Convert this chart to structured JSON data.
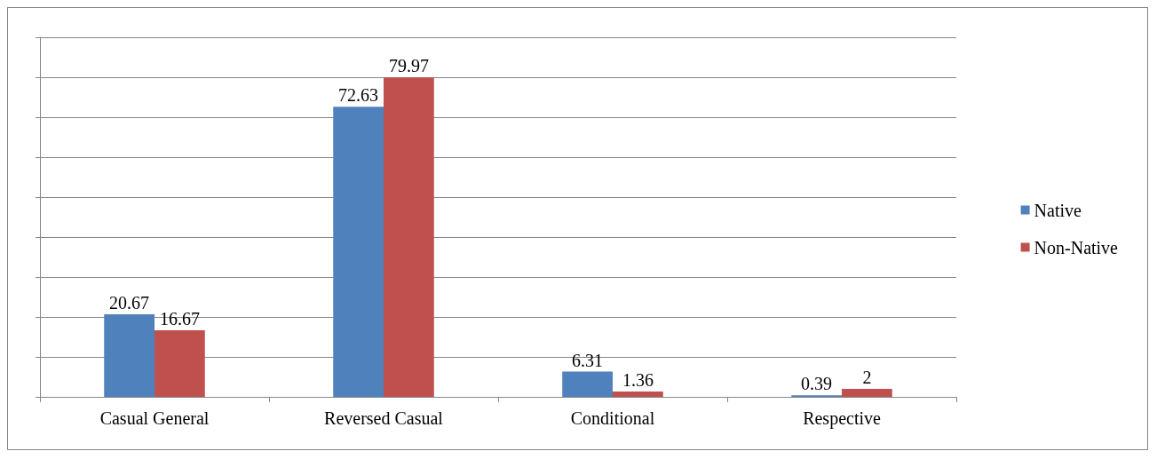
{
  "chart_data": {
    "type": "bar",
    "categories": [
      "Casual General",
      "Reversed Casual",
      "Conditional",
      "Respective"
    ],
    "series": [
      {
        "name": "Native",
        "color": "#4f81bd",
        "values": [
          20.67,
          72.63,
          6.31,
          0.39
        ]
      },
      {
        "name": "Non-Native",
        "color": "#c0504d",
        "values": [
          16.67,
          79.97,
          1.36,
          2
        ]
      }
    ],
    "ylim": [
      0,
      90
    ],
    "yticks": [
      {
        "value": 0,
        "label": null
      },
      {
        "value": 10,
        "label": null
      },
      {
        "value": 20,
        "label": null
      },
      {
        "value": 30,
        "label": null
      },
      {
        "value": 40,
        "label": null
      },
      {
        "value": 50,
        "label": null
      },
      {
        "value": 60,
        "label": null
      },
      {
        "value": 70,
        "label": null
      },
      {
        "value": 80,
        "label": null
      },
      {
        "value": 90,
        "label": null
      }
    ],
    "tick_labels": "x",
    "grid": "y",
    "legend": "right",
    "data_labels": true
  }
}
